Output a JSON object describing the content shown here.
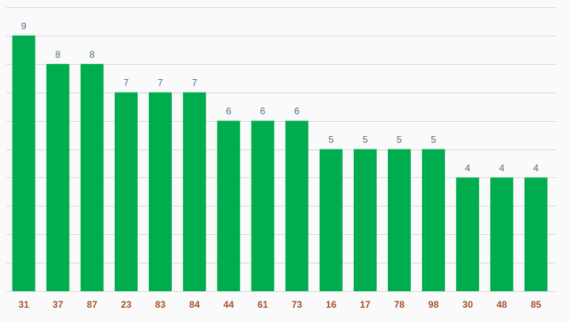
{
  "chart_data": {
    "type": "bar",
    "categories": [
      "31",
      "37",
      "87",
      "23",
      "83",
      "84",
      "44",
      "61",
      "73",
      "16",
      "17",
      "78",
      "98",
      "30",
      "48",
      "85"
    ],
    "values": [
      9,
      8,
      8,
      7,
      7,
      7,
      6,
      6,
      6,
      5,
      5,
      5,
      5,
      4,
      4,
      4
    ],
    "ylim": [
      0,
      10
    ],
    "grid": true,
    "data_labels": true,
    "colors": {
      "bar": "#00ad4e",
      "grid": "#d9d9d9",
      "data_label": "#4a6b8a",
      "tick_label": "#a0522d",
      "background": "#fafafa"
    }
  }
}
